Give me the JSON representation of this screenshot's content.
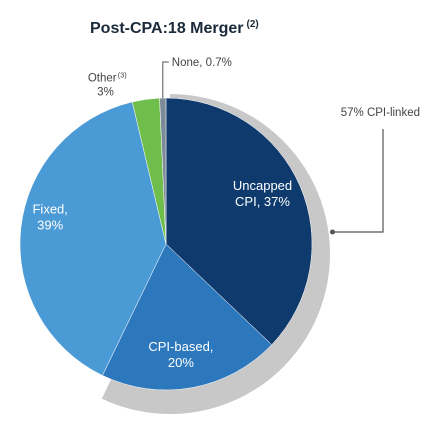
{
  "chart_data": {
    "type": "pie",
    "title": "Post-CPA:18 Merger",
    "title_note": "(2)",
    "slices": [
      {
        "label": "Uncapped CPI",
        "value": 37,
        "display": [
          "Uncapped",
          "CPI, 37%"
        ],
        "color": "#0f3a6e"
      },
      {
        "label": "CPI-based",
        "value": 20,
        "display": [
          "CPI-based,",
          "20%"
        ],
        "color": "#2d78bd"
      },
      {
        "label": "Fixed",
        "value": 39,
        "display": [
          "Fixed,",
          "39%"
        ],
        "color": "#4a9ad6"
      },
      {
        "label": "Other",
        "value": 3,
        "display": [
          "Other",
          "3%"
        ],
        "note": "(3)",
        "color": "#6fbe4c"
      },
      {
        "label": "None",
        "value": 0.7,
        "display": [
          "None, 0.7%"
        ],
        "color": "#7d8b99"
      }
    ],
    "bracket": {
      "label": "57% CPI-linked",
      "value": 57,
      "color": "#c8c8c8"
    }
  }
}
